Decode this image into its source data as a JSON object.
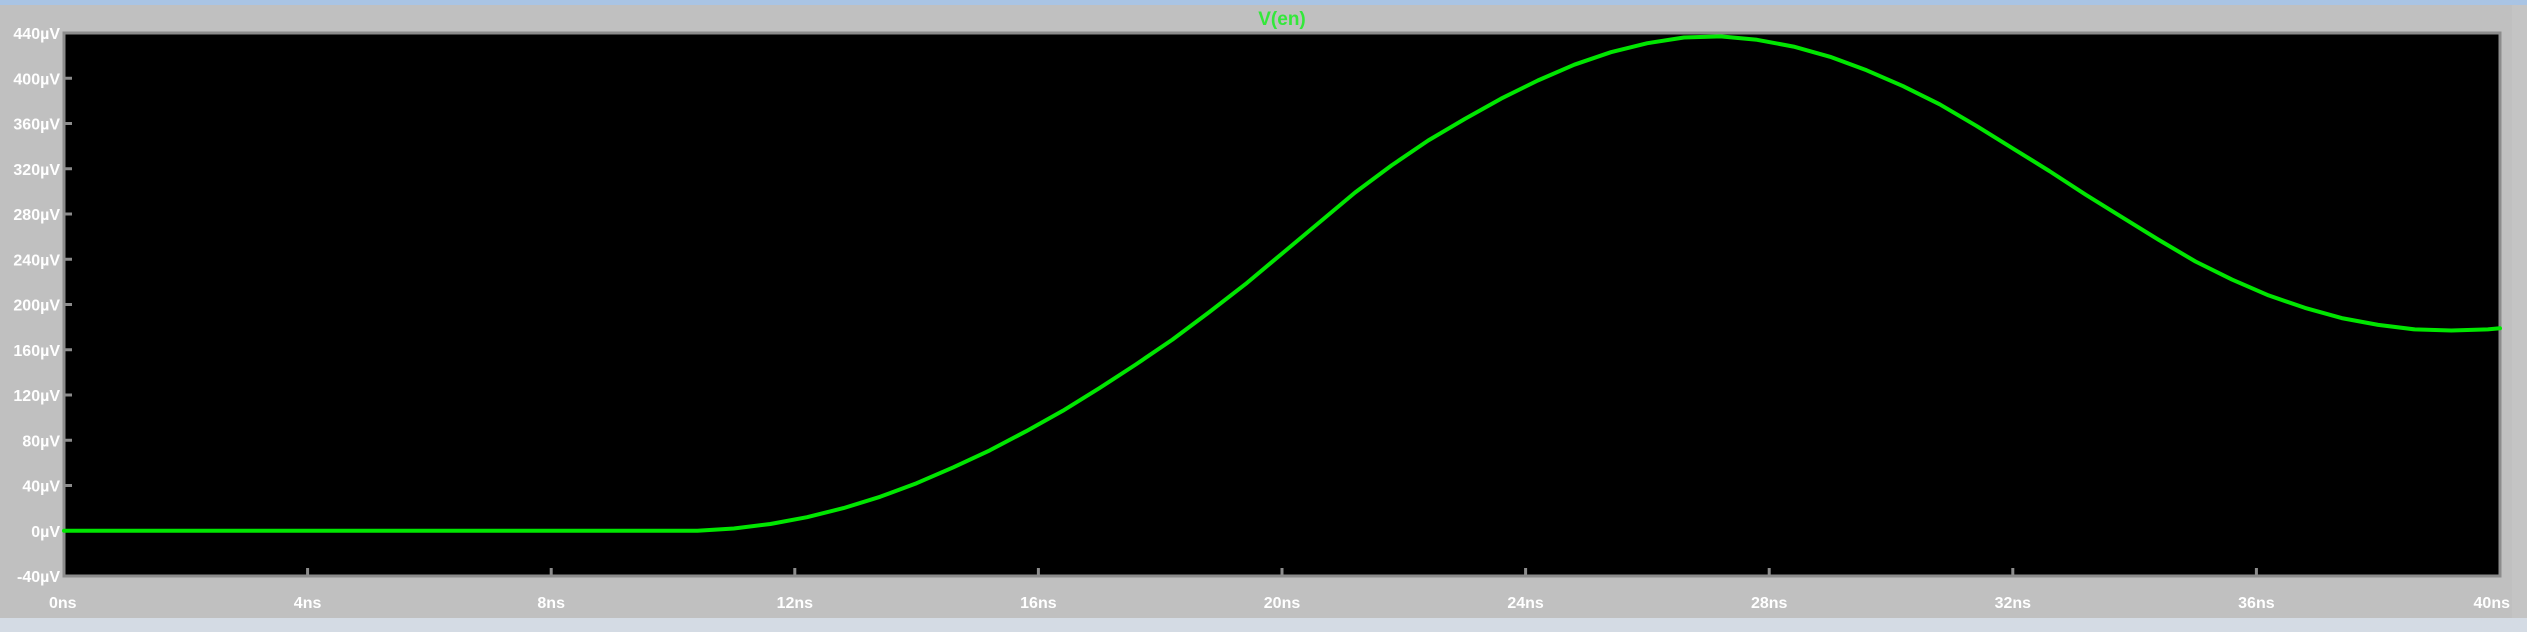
{
  "chart_data": {
    "type": "line",
    "title": "V(en)",
    "xlabel": "",
    "ylabel": "",
    "xlim": [
      0,
      40
    ],
    "ylim": [
      -40,
      440
    ],
    "x_ticks": [
      "0ns",
      "4ns",
      "8ns",
      "12ns",
      "16ns",
      "20ns",
      "24ns",
      "28ns",
      "32ns",
      "36ns",
      "40ns"
    ],
    "x_tick_values": [
      0,
      4,
      8,
      12,
      16,
      20,
      24,
      28,
      32,
      36,
      40
    ],
    "y_ticks": [
      "-40µV",
      "0µV",
      "40µV",
      "80µV",
      "120µV",
      "160µV",
      "200µV",
      "240µV",
      "280µV",
      "320µV",
      "360µV",
      "400µV",
      "440µV"
    ],
    "y_tick_values": [
      -40,
      0,
      40,
      80,
      120,
      160,
      200,
      240,
      280,
      320,
      360,
      400,
      440
    ],
    "grid": false,
    "series": [
      {
        "name": "V(en)",
        "color": "#00e600",
        "x": [
          0,
          2,
          4,
          6,
          8,
          10,
          10.4,
          11,
          11.6,
          12.2,
          12.8,
          13.4,
          14,
          14.6,
          15.2,
          15.8,
          16.4,
          17,
          17.6,
          18.2,
          18.8,
          19.4,
          20,
          20.6,
          21.2,
          21.8,
          22.4,
          23,
          23.6,
          24.2,
          24.8,
          25.4,
          26,
          26.6,
          27.2,
          27.8,
          28.4,
          29,
          29.6,
          30.2,
          30.8,
          31.4,
          32,
          32.6,
          33.2,
          33.8,
          34.4,
          35,
          35.6,
          36.2,
          36.8,
          37.4,
          38,
          38.6,
          39.2,
          39.8,
          40
        ],
        "y": [
          0,
          0,
          0,
          0,
          0,
          0,
          0,
          2,
          6,
          12,
          20,
          30,
          42,
          56,
          71,
          88,
          106,
          126,
          147,
          169,
          193,
          218,
          245,
          272,
          299,
          323,
          345,
          364,
          382,
          398,
          412,
          423,
          431,
          436,
          437,
          434,
          428,
          419,
          407,
          393,
          377,
          358,
          338,
          318,
          297,
          277,
          257,
          238,
          222,
          208,
          197,
          188,
          182,
          178,
          177,
          178,
          179
        ]
      }
    ]
  }
}
